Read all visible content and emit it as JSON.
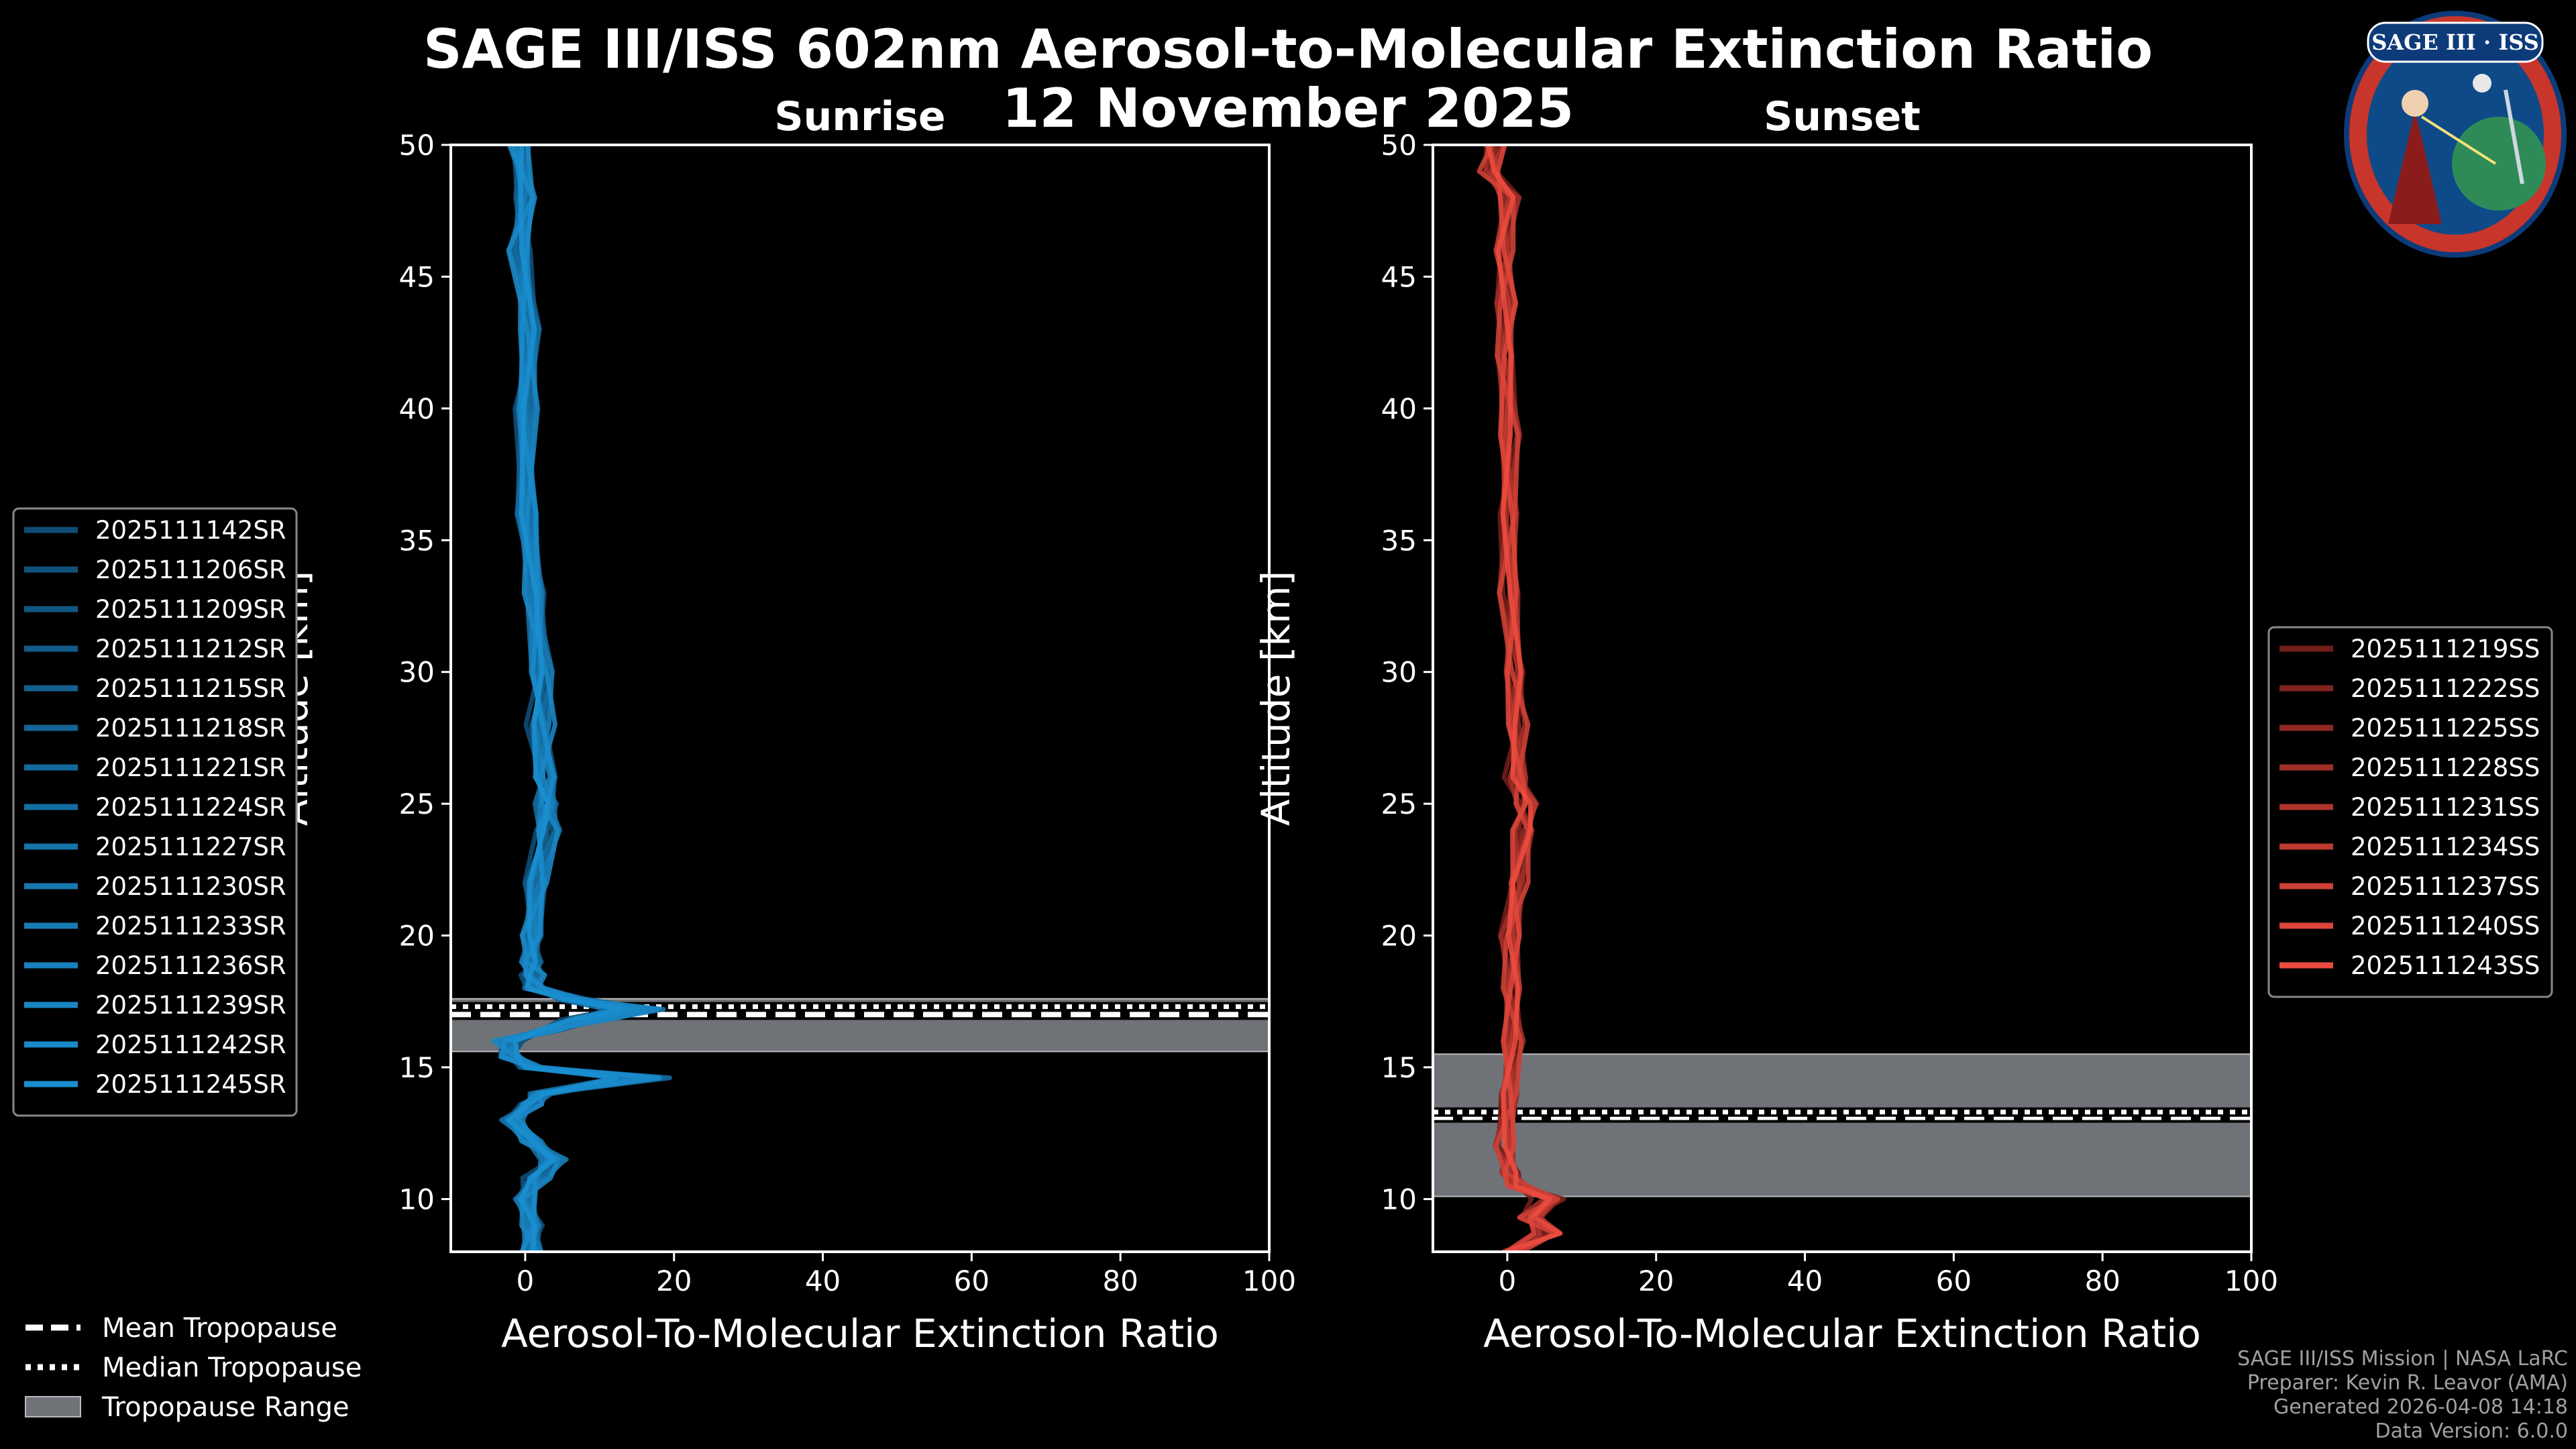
{
  "title": {
    "line1": "SAGE III/ISS 602nm Aerosol-to-Molecular Extinction Ratio",
    "line2": "12 November 2025"
  },
  "logo": {
    "text": "SAGE III · ISS"
  },
  "credits": {
    "mission": "SAGE III/ISS Mission | NASA LaRC",
    "preparer": "Preparer: Kevin R. Leavor (AMA)",
    "generated": "Generated 2026-04-08 14:18",
    "version": "Data Version: 6.0.0"
  },
  "bottom_legend": [
    {
      "label": "Mean Tropopause",
      "style": "dashed"
    },
    {
      "label": "Median Tropopause",
      "style": "dotted"
    },
    {
      "label": "Tropopause Range",
      "style": "patch"
    }
  ],
  "chart_data": [
    {
      "type": "line",
      "title": "Sunrise",
      "xlabel": "Aerosol-To-Molecular Extinction Ratio",
      "ylabel": "Altitude [km]",
      "xlim": [
        -10,
        100
      ],
      "ylim": [
        8,
        50
      ],
      "xticks": [
        0,
        20,
        40,
        60,
        80,
        100
      ],
      "yticks": [
        10,
        15,
        20,
        25,
        30,
        35,
        40,
        45,
        50
      ],
      "legend_position": "left",
      "color_light": "#1a8fd0",
      "color_dark": "#0b2a44",
      "tropopause": {
        "mean": 17.0,
        "median": 17.3,
        "range": [
          15.6,
          17.6
        ]
      },
      "series_names": [
        "2025111142SR",
        "2025111206SR",
        "2025111209SR",
        "2025111212SR",
        "2025111215SR",
        "2025111218SR",
        "2025111221SR",
        "2025111224SR",
        "2025111227SR",
        "2025111230SR",
        "2025111233SR",
        "2025111236SR",
        "2025111239SR",
        "2025111242SR",
        "2025111245SR"
      ],
      "profile": {
        "altitude": [
          8,
          9,
          10,
          10.8,
          11.5,
          12.2,
          13,
          13.6,
          14,
          14.6,
          15,
          15.4,
          16,
          16.4,
          16.8,
          17.2,
          17.6,
          18,
          18.5,
          19,
          20,
          22,
          24,
          25,
          26,
          28,
          30,
          33,
          36,
          40,
          43,
          46,
          48,
          50
        ],
        "ratio": [
          0.5,
          0.8,
          0.3,
          1.5,
          3.5,
          1.0,
          -1.5,
          0.5,
          2.0,
          15.5,
          1.0,
          -2.0,
          -2.5,
          3.0,
          8.0,
          14.5,
          6.0,
          1.5,
          0.8,
          0.5,
          1.0,
          1.8,
          2.5,
          2.8,
          2.6,
          2.2,
          1.8,
          1.2,
          0.5,
          0.0,
          0.3,
          -0.5,
          0.4,
          -1.0
        ]
      }
    },
    {
      "type": "line",
      "title": "Sunset",
      "xlabel": "Aerosol-To-Molecular Extinction Ratio",
      "ylabel": "Altitude [km]",
      "xlim": [
        -10,
        100
      ],
      "ylim": [
        8,
        50
      ],
      "xticks": [
        0,
        20,
        40,
        60,
        80,
        100
      ],
      "yticks": [
        10,
        15,
        20,
        25,
        30,
        35,
        40,
        45,
        50
      ],
      "legend_position": "right",
      "color_light": "#ec4b3f",
      "color_dark": "#2e0505",
      "tropopause": {
        "mean": 13.1,
        "median": 13.3,
        "range": [
          10.1,
          15.5
        ]
      },
      "series_names": [
        "2025111219SS",
        "2025111222SS",
        "2025111225SS",
        "2025111228SS",
        "2025111231SS",
        "2025111234SS",
        "2025111237SS",
        "2025111240SS",
        "2025111243SS"
      ],
      "profile": {
        "altitude": [
          8,
          8.7,
          9.3,
          10,
          10.5,
          11,
          12,
          14,
          16,
          18,
          20,
          22,
          24,
          25,
          26,
          28,
          30,
          33,
          36,
          39,
          42,
          44,
          46,
          48,
          49,
          50
        ],
        "ratio": [
          0.3,
          5.5,
          3.0,
          6.0,
          1.0,
          0.2,
          0.0,
          0.3,
          0.5,
          0.6,
          0.8,
          1.2,
          2.0,
          2.5,
          1.5,
          1.0,
          0.8,
          0.5,
          0.3,
          0.0,
          -0.3,
          0.2,
          -0.5,
          0.0,
          -2.0,
          -1.5
        ]
      }
    }
  ]
}
